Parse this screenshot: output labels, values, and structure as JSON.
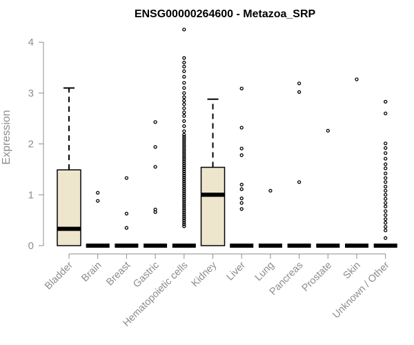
{
  "chart_data": {
    "type": "box",
    "title": "ENSG00000264600 - Metazoa_SRP",
    "xlabel": "",
    "ylabel": "Expression",
    "ylim": [
      0,
      4.3
    ],
    "yticks": [
      0,
      1,
      2,
      3,
      4
    ],
    "box_fill": "#ede6cd",
    "categories": [
      "Bladder",
      "Brain",
      "Breast",
      "Gastric",
      "Hematopoietic cells",
      "Kidney",
      "Liver",
      "Lung",
      "Pancreas",
      "Prostate",
      "Skin",
      "Unknown / Other"
    ],
    "boxes": [
      {
        "q1": 0,
        "median": 0.33,
        "q3": 1.49,
        "whisker_low": 0,
        "whisker_high": 3.1,
        "outliers": []
      },
      {
        "q1": 0,
        "median": 0,
        "q3": 0,
        "whisker_low": 0,
        "whisker_high": 0,
        "outliers": [
          0.88,
          1.04
        ]
      },
      {
        "q1": 0,
        "median": 0,
        "q3": 0,
        "whisker_low": 0,
        "whisker_high": 0,
        "outliers": [
          0.35,
          0.63,
          1.33
        ]
      },
      {
        "q1": 0,
        "median": 0,
        "q3": 0,
        "whisker_low": 0,
        "whisker_high": 0,
        "outliers": [
          0.66,
          0.71,
          1.55,
          1.94,
          2.43
        ]
      },
      {
        "q1": 0,
        "median": 0,
        "q3": 0,
        "whisker_low": 0,
        "whisker_high": 0,
        "outliers": [
          0.38,
          0.42,
          0.46,
          0.5,
          0.54,
          0.58,
          0.62,
          0.66,
          0.7,
          0.74,
          0.78,
          0.82,
          0.86,
          0.9,
          0.94,
          0.98,
          1.02,
          1.06,
          1.1,
          1.14,
          1.18,
          1.22,
          1.26,
          1.3,
          1.34,
          1.38,
          1.42,
          1.46,
          1.5,
          1.54,
          1.58,
          1.62,
          1.66,
          1.7,
          1.74,
          1.78,
          1.82,
          1.86,
          1.9,
          1.94,
          1.98,
          2.02,
          2.06,
          2.1,
          2.14,
          2.18,
          2.25,
          2.35,
          2.45,
          2.55,
          2.62,
          2.7,
          2.78,
          2.85,
          2.92,
          3.0,
          3.1,
          3.2,
          3.32,
          3.43,
          3.52,
          3.6,
          3.69,
          4.25
        ]
      },
      {
        "q1": 0,
        "median": 1.0,
        "q3": 1.54,
        "whisker_low": 0,
        "whisker_high": 2.88,
        "outliers": []
      },
      {
        "q1": 0,
        "median": 0,
        "q3": 0,
        "whisker_low": 0,
        "whisker_high": 0,
        "outliers": [
          0.72,
          0.84,
          0.93,
          1.11,
          1.2,
          1.78,
          1.91,
          2.32,
          3.09
        ]
      },
      {
        "q1": 0,
        "median": 0,
        "q3": 0,
        "whisker_low": 0,
        "whisker_high": 0,
        "outliers": [
          1.08
        ]
      },
      {
        "q1": 0,
        "median": 0,
        "q3": 0,
        "whisker_low": 0,
        "whisker_high": 0,
        "outliers": [
          1.25,
          3.02,
          3.19
        ]
      },
      {
        "q1": 0,
        "median": 0,
        "q3": 0,
        "whisker_low": 0,
        "whisker_high": 0,
        "outliers": [
          2.26
        ]
      },
      {
        "q1": 0,
        "median": 0,
        "q3": 0,
        "whisker_low": 0,
        "whisker_high": 0,
        "outliers": [
          3.27
        ]
      },
      {
        "q1": 0,
        "median": 0,
        "q3": 0,
        "whisker_low": 0,
        "whisker_high": 0,
        "outliers": [
          0.15,
          0.3,
          0.37,
          0.45,
          0.52,
          0.6,
          0.68,
          0.77,
          0.84,
          0.92,
          1.0,
          1.08,
          1.16,
          1.25,
          1.33,
          1.42,
          1.52,
          1.6,
          1.71,
          1.82,
          1.92,
          2.01,
          2.6,
          2.83
        ]
      }
    ]
  }
}
